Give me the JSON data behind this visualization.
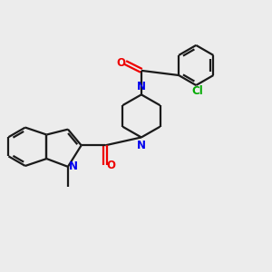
{
  "background_color": "#ececec",
  "bond_color": "#1a1a1a",
  "n_color": "#0000ee",
  "o_color": "#ee0000",
  "cl_color": "#00aa00",
  "line_width": 1.6,
  "figsize": [
    3.0,
    3.0
  ],
  "dpi": 100,
  "xlim": [
    0,
    10
  ],
  "ylim": [
    0,
    10
  ]
}
